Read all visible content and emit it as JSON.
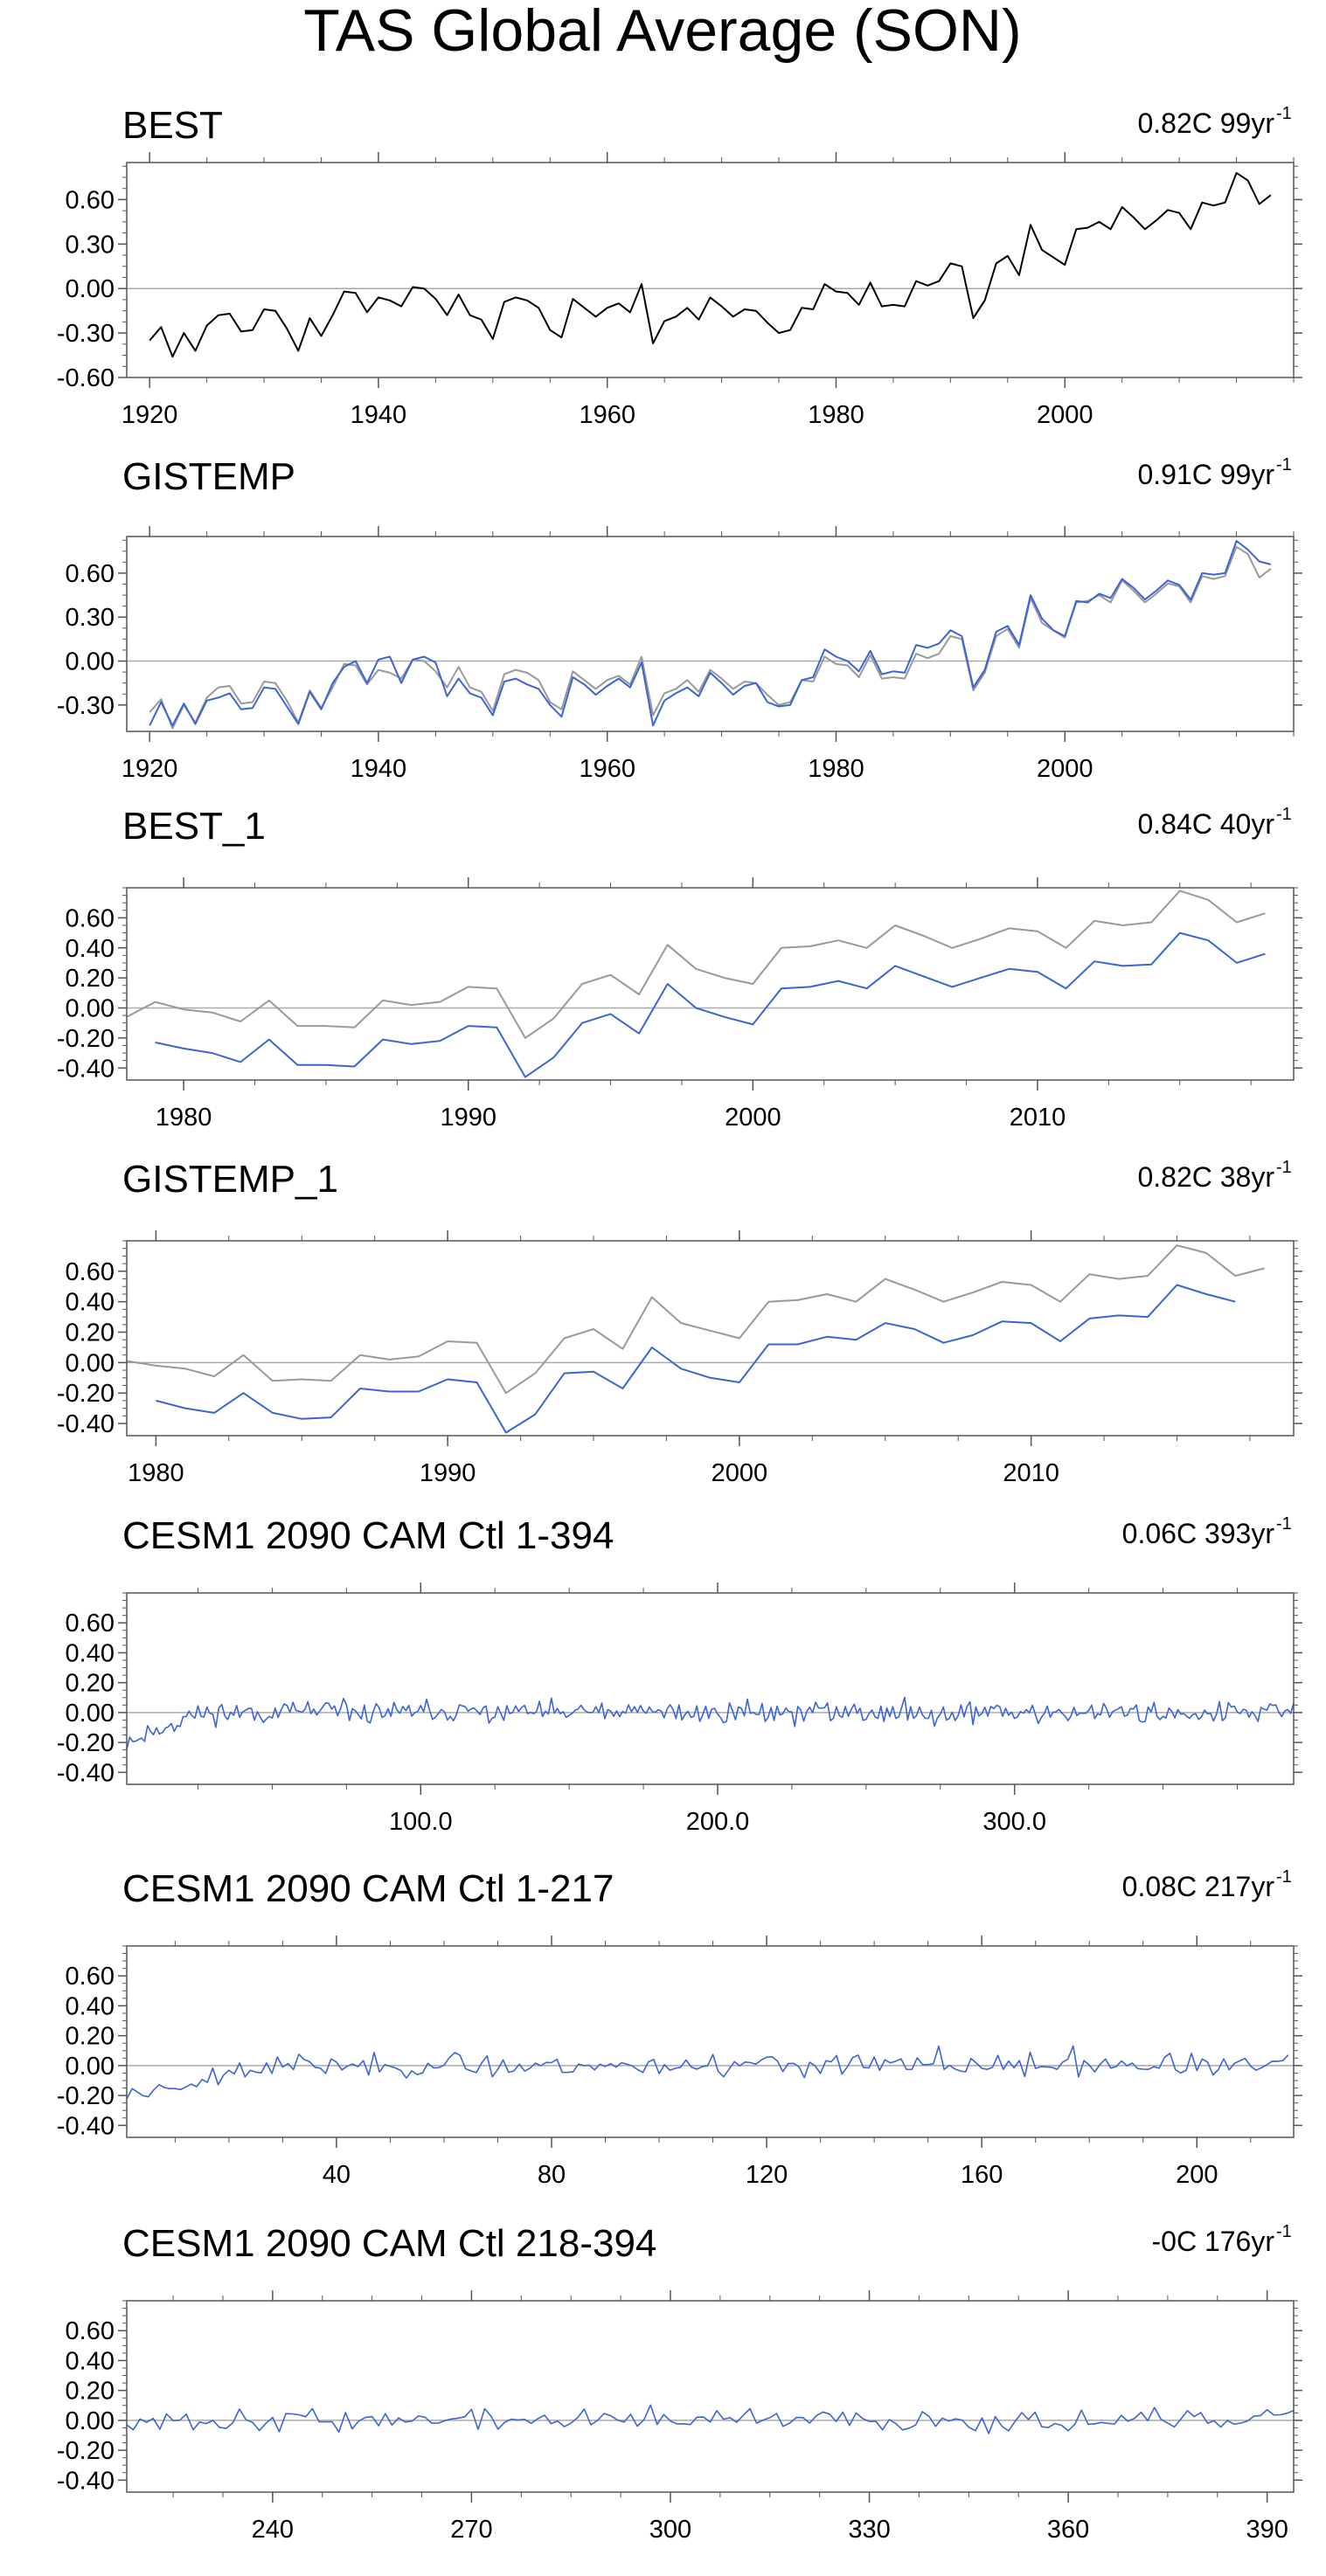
{
  "title": "TAS Global Average (SON)",
  "colors": {
    "primary": "#000000",
    "secondary": "#999999",
    "model": "#3c64d2",
    "zero": "#aaaaaa",
    "axis": "#555555"
  },
  "chart_data": [
    {
      "type": "line",
      "name": "BEST",
      "trend_text": "0.82C 99yr",
      "trend_exp": "-1",
      "xlim": [
        1918,
        2020
      ],
      "ylim": [
        -0.6,
        0.85
      ],
      "yticks": [
        0.6,
        0.3,
        0.0,
        -0.3,
        -0.6
      ],
      "ytick_labels": [
        "0.60",
        "0.30",
        "0.00",
        "-0.30",
        "-0.60"
      ],
      "xticks": [
        1920,
        1940,
        1960,
        1980,
        2000
      ],
      "xtick_labels": [
        "1920",
        "1940",
        "1960",
        "1980",
        "2000"
      ],
      "series": [
        {
          "name": "BEST",
          "color": "#000000",
          "x0": 1920,
          "values": [
            -0.35,
            -0.26,
            -0.46,
            -0.3,
            -0.42,
            -0.25,
            -0.18,
            -0.17,
            -0.29,
            -0.28,
            -0.14,
            -0.15,
            -0.27,
            -0.42,
            -0.2,
            -0.32,
            -0.18,
            -0.02,
            -0.03,
            -0.16,
            -0.06,
            -0.08,
            -0.12,
            0.01,
            0.0,
            -0.07,
            -0.18,
            -0.04,
            -0.18,
            -0.21,
            -0.34,
            -0.09,
            -0.06,
            -0.08,
            -0.13,
            -0.28,
            -0.33,
            -0.07,
            -0.13,
            -0.19,
            -0.13,
            -0.1,
            -0.16,
            0.03,
            -0.37,
            -0.22,
            -0.19,
            -0.13,
            -0.21,
            -0.06,
            -0.12,
            -0.19,
            -0.14,
            -0.15,
            -0.23,
            -0.3,
            -0.28,
            -0.13,
            -0.14,
            0.03,
            -0.02,
            -0.03,
            -0.11,
            0.04,
            -0.12,
            -0.11,
            -0.12,
            0.05,
            0.02,
            0.05,
            0.17,
            0.15,
            -0.2,
            -0.08,
            0.17,
            0.22,
            0.09,
            0.43,
            0.26,
            0.21,
            0.16,
            0.4,
            0.41,
            0.45,
            0.4,
            0.55,
            0.48,
            0.4,
            0.46,
            0.53,
            0.51,
            0.4,
            0.58,
            0.56,
            0.58,
            0.78,
            0.73,
            0.57,
            0.63
          ]
        }
      ]
    },
    {
      "type": "line",
      "name": "GISTEMP",
      "trend_text": "0.91C 99yr",
      "trend_exp": "-1",
      "xlim": [
        1918,
        2020
      ],
      "ylim": [
        -0.48,
        0.85
      ],
      "yticks": [
        0.6,
        0.3,
        0.0,
        -0.3
      ],
      "ytick_labels": [
        "0.60",
        "0.30",
        "0.00",
        "-0.30"
      ],
      "xticks": [
        1920,
        1940,
        1960,
        1980,
        2000
      ],
      "xtick_labels": [
        "1920",
        "1940",
        "1960",
        "1980",
        "2000"
      ],
      "series": [
        {
          "name": "BEST",
          "color": "#999999",
          "x0": 1920,
          "values": [
            -0.35,
            -0.26,
            -0.46,
            -0.3,
            -0.42,
            -0.25,
            -0.18,
            -0.17,
            -0.29,
            -0.28,
            -0.14,
            -0.15,
            -0.27,
            -0.42,
            -0.2,
            -0.32,
            -0.18,
            -0.02,
            -0.03,
            -0.16,
            -0.06,
            -0.08,
            -0.12,
            0.01,
            0.0,
            -0.07,
            -0.18,
            -0.04,
            -0.18,
            -0.21,
            -0.34,
            -0.09,
            -0.06,
            -0.08,
            -0.13,
            -0.28,
            -0.33,
            -0.07,
            -0.13,
            -0.19,
            -0.13,
            -0.1,
            -0.16,
            0.03,
            -0.37,
            -0.22,
            -0.19,
            -0.13,
            -0.21,
            -0.06,
            -0.12,
            -0.19,
            -0.14,
            -0.15,
            -0.23,
            -0.3,
            -0.28,
            -0.13,
            -0.14,
            0.03,
            -0.02,
            -0.03,
            -0.11,
            0.04,
            -0.12,
            -0.11,
            -0.12,
            0.05,
            0.02,
            0.05,
            0.17,
            0.15,
            -0.2,
            -0.08,
            0.17,
            0.22,
            0.09,
            0.43,
            0.26,
            0.21,
            0.16,
            0.4,
            0.41,
            0.45,
            0.4,
            0.55,
            0.48,
            0.4,
            0.46,
            0.53,
            0.51,
            0.4,
            0.58,
            0.56,
            0.58,
            0.78,
            0.73,
            0.57,
            0.63
          ]
        },
        {
          "name": "GISTEMP",
          "color": "#3c64d2",
          "x0": 1920,
          "values": [
            -0.44,
            -0.28,
            -0.44,
            -0.29,
            -0.43,
            -0.27,
            -0.25,
            -0.22,
            -0.33,
            -0.32,
            -0.18,
            -0.19,
            -0.31,
            -0.43,
            -0.21,
            -0.33,
            -0.15,
            -0.04,
            0.0,
            -0.15,
            0.01,
            0.03,
            -0.15,
            0.01,
            0.03,
            -0.01,
            -0.24,
            -0.12,
            -0.22,
            -0.25,
            -0.37,
            -0.14,
            -0.12,
            -0.16,
            -0.19,
            -0.3,
            -0.38,
            -0.11,
            -0.16,
            -0.23,
            -0.17,
            -0.12,
            -0.18,
            -0.01,
            -0.44,
            -0.27,
            -0.22,
            -0.18,
            -0.24,
            -0.08,
            -0.15,
            -0.23,
            -0.17,
            -0.15,
            -0.28,
            -0.31,
            -0.3,
            -0.13,
            -0.11,
            0.08,
            0.03,
            0.0,
            -0.07,
            0.07,
            -0.09,
            -0.07,
            -0.08,
            0.11,
            0.09,
            0.12,
            0.21,
            0.17,
            -0.18,
            -0.06,
            0.2,
            0.24,
            0.11,
            0.45,
            0.29,
            0.21,
            0.17,
            0.41,
            0.4,
            0.46,
            0.43,
            0.56,
            0.5,
            0.42,
            0.48,
            0.55,
            0.52,
            0.42,
            0.6,
            0.59,
            0.6,
            0.82,
            0.76,
            0.68,
            0.66
          ]
        }
      ]
    },
    {
      "type": "line",
      "name": "BEST_1",
      "trend_text": "0.84C 40yr",
      "trend_exp": "-1",
      "xlim": [
        1978,
        2019
      ],
      "ylim": [
        -0.48,
        0.8
      ],
      "yticks": [
        0.6,
        0.4,
        0.2,
        0.0,
        -0.2,
        -0.4
      ],
      "ytick_labels": [
        "0.60",
        "0.40",
        "0.20",
        "0.00",
        "-0.20",
        "-0.40"
      ],
      "xticks": [
        1980,
        1990,
        2000,
        2010
      ],
      "xtick_labels": [
        "1980",
        "1990",
        "2000",
        "2010"
      ],
      "series": [
        {
          "name": "BEST",
          "color": "#999999",
          "x0": 1978,
          "values": [
            -0.06,
            0.04,
            -0.01,
            -0.03,
            -0.09,
            0.05,
            -0.12,
            -0.12,
            -0.13,
            0.05,
            0.02,
            0.04,
            0.14,
            0.13,
            -0.2,
            -0.07,
            0.16,
            0.22,
            0.09,
            0.42,
            0.26,
            0.2,
            0.16,
            0.4,
            0.41,
            0.45,
            0.4,
            0.55,
            0.48,
            0.4,
            0.46,
            0.53,
            0.51,
            0.4,
            0.58,
            0.55,
            0.57,
            0.78,
            0.72,
            0.57,
            0.63
          ]
        },
        {
          "name": "BEST_1",
          "color": "#3c64d2",
          "x0": 1979,
          "values": [
            -0.23,
            -0.27,
            -0.3,
            -0.36,
            -0.21,
            -0.38,
            -0.38,
            -0.39,
            -0.21,
            -0.24,
            -0.22,
            -0.12,
            -0.13,
            -0.46,
            -0.33,
            -0.1,
            -0.04,
            -0.17,
            0.16,
            0.0,
            -0.06,
            -0.11,
            0.13,
            0.14,
            0.18,
            0.13,
            0.28,
            0.21,
            0.14,
            0.2,
            0.26,
            0.24,
            0.13,
            0.31,
            0.28,
            0.29,
            0.5,
            0.45,
            0.3,
            0.36
          ]
        }
      ]
    },
    {
      "type": "line",
      "name": "GISTEMP_1",
      "trend_text": "0.82C 38yr",
      "trend_exp": "-1",
      "xlim": [
        1979,
        2019
      ],
      "ylim": [
        -0.48,
        0.8
      ],
      "yticks": [
        0.6,
        0.4,
        0.2,
        0.0,
        -0.2,
        -0.4
      ],
      "ytick_labels": [
        "0.60",
        "0.40",
        "0.20",
        "0.00",
        "-0.20",
        "-0.40"
      ],
      "xticks": [
        1980,
        1990,
        2000,
        2010
      ],
      "xtick_labels": [
        "1980",
        "1990",
        "2000",
        "2010"
      ],
      "series": [
        {
          "name": "GISTEMP",
          "color": "#999999",
          "x0": 1979,
          "values": [
            0.01,
            -0.02,
            -0.04,
            -0.09,
            0.05,
            -0.12,
            -0.11,
            -0.12,
            0.05,
            0.02,
            0.04,
            0.14,
            0.13,
            -0.2,
            -0.07,
            0.16,
            0.22,
            0.09,
            0.43,
            0.26,
            0.21,
            0.16,
            0.4,
            0.41,
            0.45,
            0.4,
            0.55,
            0.48,
            0.4,
            0.46,
            0.53,
            0.51,
            0.4,
            0.58,
            0.55,
            0.57,
            0.77,
            0.72,
            0.57,
            0.62
          ]
        },
        {
          "name": "GISTEMP_1",
          "color": "#3c64d2",
          "x0": 1980,
          "values": [
            -0.25,
            -0.3,
            -0.33,
            -0.2,
            -0.33,
            -0.37,
            -0.36,
            -0.17,
            -0.19,
            -0.19,
            -0.11,
            -0.13,
            -0.46,
            -0.34,
            -0.07,
            -0.06,
            -0.17,
            0.1,
            -0.04,
            -0.1,
            -0.13,
            0.12,
            0.12,
            0.17,
            0.15,
            0.26,
            0.22,
            0.13,
            0.18,
            0.27,
            0.26,
            0.14,
            0.29,
            0.31,
            0.3,
            0.51,
            0.45,
            0.4
          ]
        }
      ]
    },
    {
      "type": "line",
      "name": "CESM1 2090 CAM Ctl 1-394",
      "trend_text": "0.06C 393yr",
      "trend_exp": "-1",
      "xlim": [
        1,
        394
      ],
      "ylim": [
        -0.48,
        0.8
      ],
      "yticks": [
        0.6,
        0.4,
        0.2,
        0.0,
        -0.2,
        -0.4
      ],
      "ytick_labels": [
        "0.60",
        "0.40",
        "0.20",
        "0.00",
        "-0.20",
        "-0.40"
      ],
      "xticks": [
        100,
        200,
        300
      ],
      "xtick_labels": [
        "100.0",
        "200.0",
        "300.0"
      ],
      "series": [
        {
          "name": "CESM1 2090 CAM Ctl 1-394",
          "color": "#3c64d2",
          "x0": 1,
          "step": 1,
          "n": 394,
          "seed": 11,
          "amplitude": 0.045,
          "start_value": -0.2,
          "spin_up": 25
        }
      ]
    },
    {
      "type": "line",
      "name": "CESM1 2090 CAM Ctl 1-217",
      "trend_text": "0.08C 217yr",
      "trend_exp": "-1",
      "xlim": [
        1,
        218
      ],
      "ylim": [
        -0.48,
        0.8
      ],
      "yticks": [
        0.6,
        0.4,
        0.2,
        0.0,
        -0.2,
        -0.4
      ],
      "ytick_labels": [
        "0.60",
        "0.40",
        "0.20",
        "0.00",
        "-0.20",
        "-0.40"
      ],
      "xticks": [
        40,
        80,
        120,
        160,
        200
      ],
      "xtick_labels": [
        "40",
        "80",
        "120",
        "160",
        "200"
      ],
      "series": [
        {
          "name": "CESM1 2090 CAM Ctl 1-217",
          "color": "#3c64d2",
          "x0": 1,
          "step": 1,
          "n": 217,
          "seed": 23,
          "amplitude": 0.045,
          "start_value": -0.2,
          "spin_up": 25
        }
      ]
    },
    {
      "type": "line",
      "name": "CESM1 2090 CAM Ctl 218-394",
      "trend_text": "-0C 176yr",
      "trend_exp": "-1",
      "xlim": [
        218,
        394
      ],
      "ylim": [
        -0.48,
        0.8
      ],
      "yticks": [
        0.6,
        0.4,
        0.2,
        0.0,
        -0.2,
        -0.4
      ],
      "ytick_labels": [
        "0.60",
        "0.40",
        "0.20",
        "0.00",
        "-0.20",
        "-0.40"
      ],
      "xticks": [
        240,
        270,
        300,
        330,
        360,
        390
      ],
      "xtick_labels": [
        "240",
        "270",
        "300",
        "330",
        "360",
        "390"
      ],
      "series": [
        {
          "name": "CESM1 2090 CAM Ctl 218-394",
          "color": "#3c64d2",
          "x0": 218,
          "step": 1,
          "n": 177,
          "seed": 37,
          "amplitude": 0.045,
          "start_value": -0.03,
          "spin_up": 0
        }
      ]
    }
  ]
}
